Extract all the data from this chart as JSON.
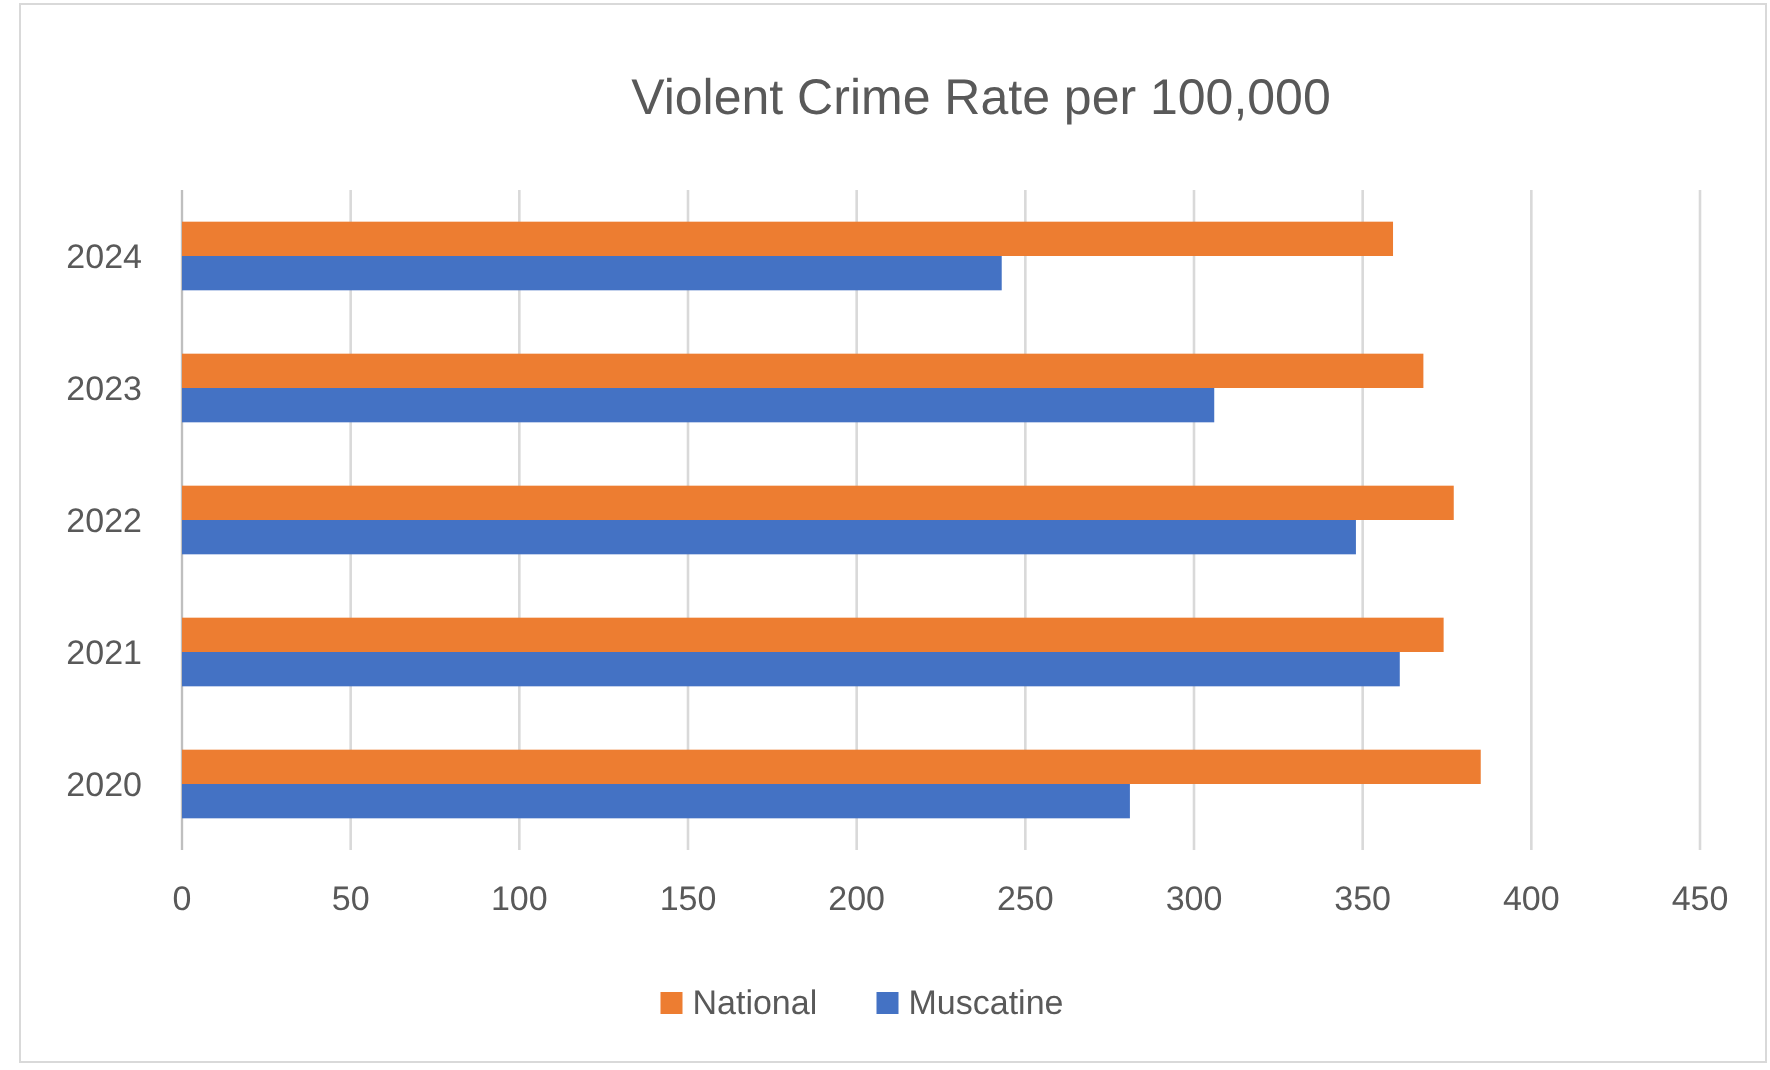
{
  "chart_data": {
    "type": "bar",
    "orientation": "horizontal",
    "title": "Violent Crime Rate per 100,000",
    "categories": [
      "2024",
      "2023",
      "2022",
      "2021",
      "2020"
    ],
    "series": [
      {
        "name": "National",
        "color": "#ed7d31",
        "values": [
          359,
          368,
          377,
          374,
          385
        ]
      },
      {
        "name": "Muscatine",
        "color": "#4472c4",
        "values": [
          243,
          306,
          348,
          361,
          281
        ]
      }
    ],
    "xlim": [
      0,
      450
    ],
    "xticks": [
      0,
      50,
      100,
      150,
      200,
      250,
      300,
      350,
      400,
      450
    ],
    "grid": "x",
    "legend": "bottom"
  }
}
